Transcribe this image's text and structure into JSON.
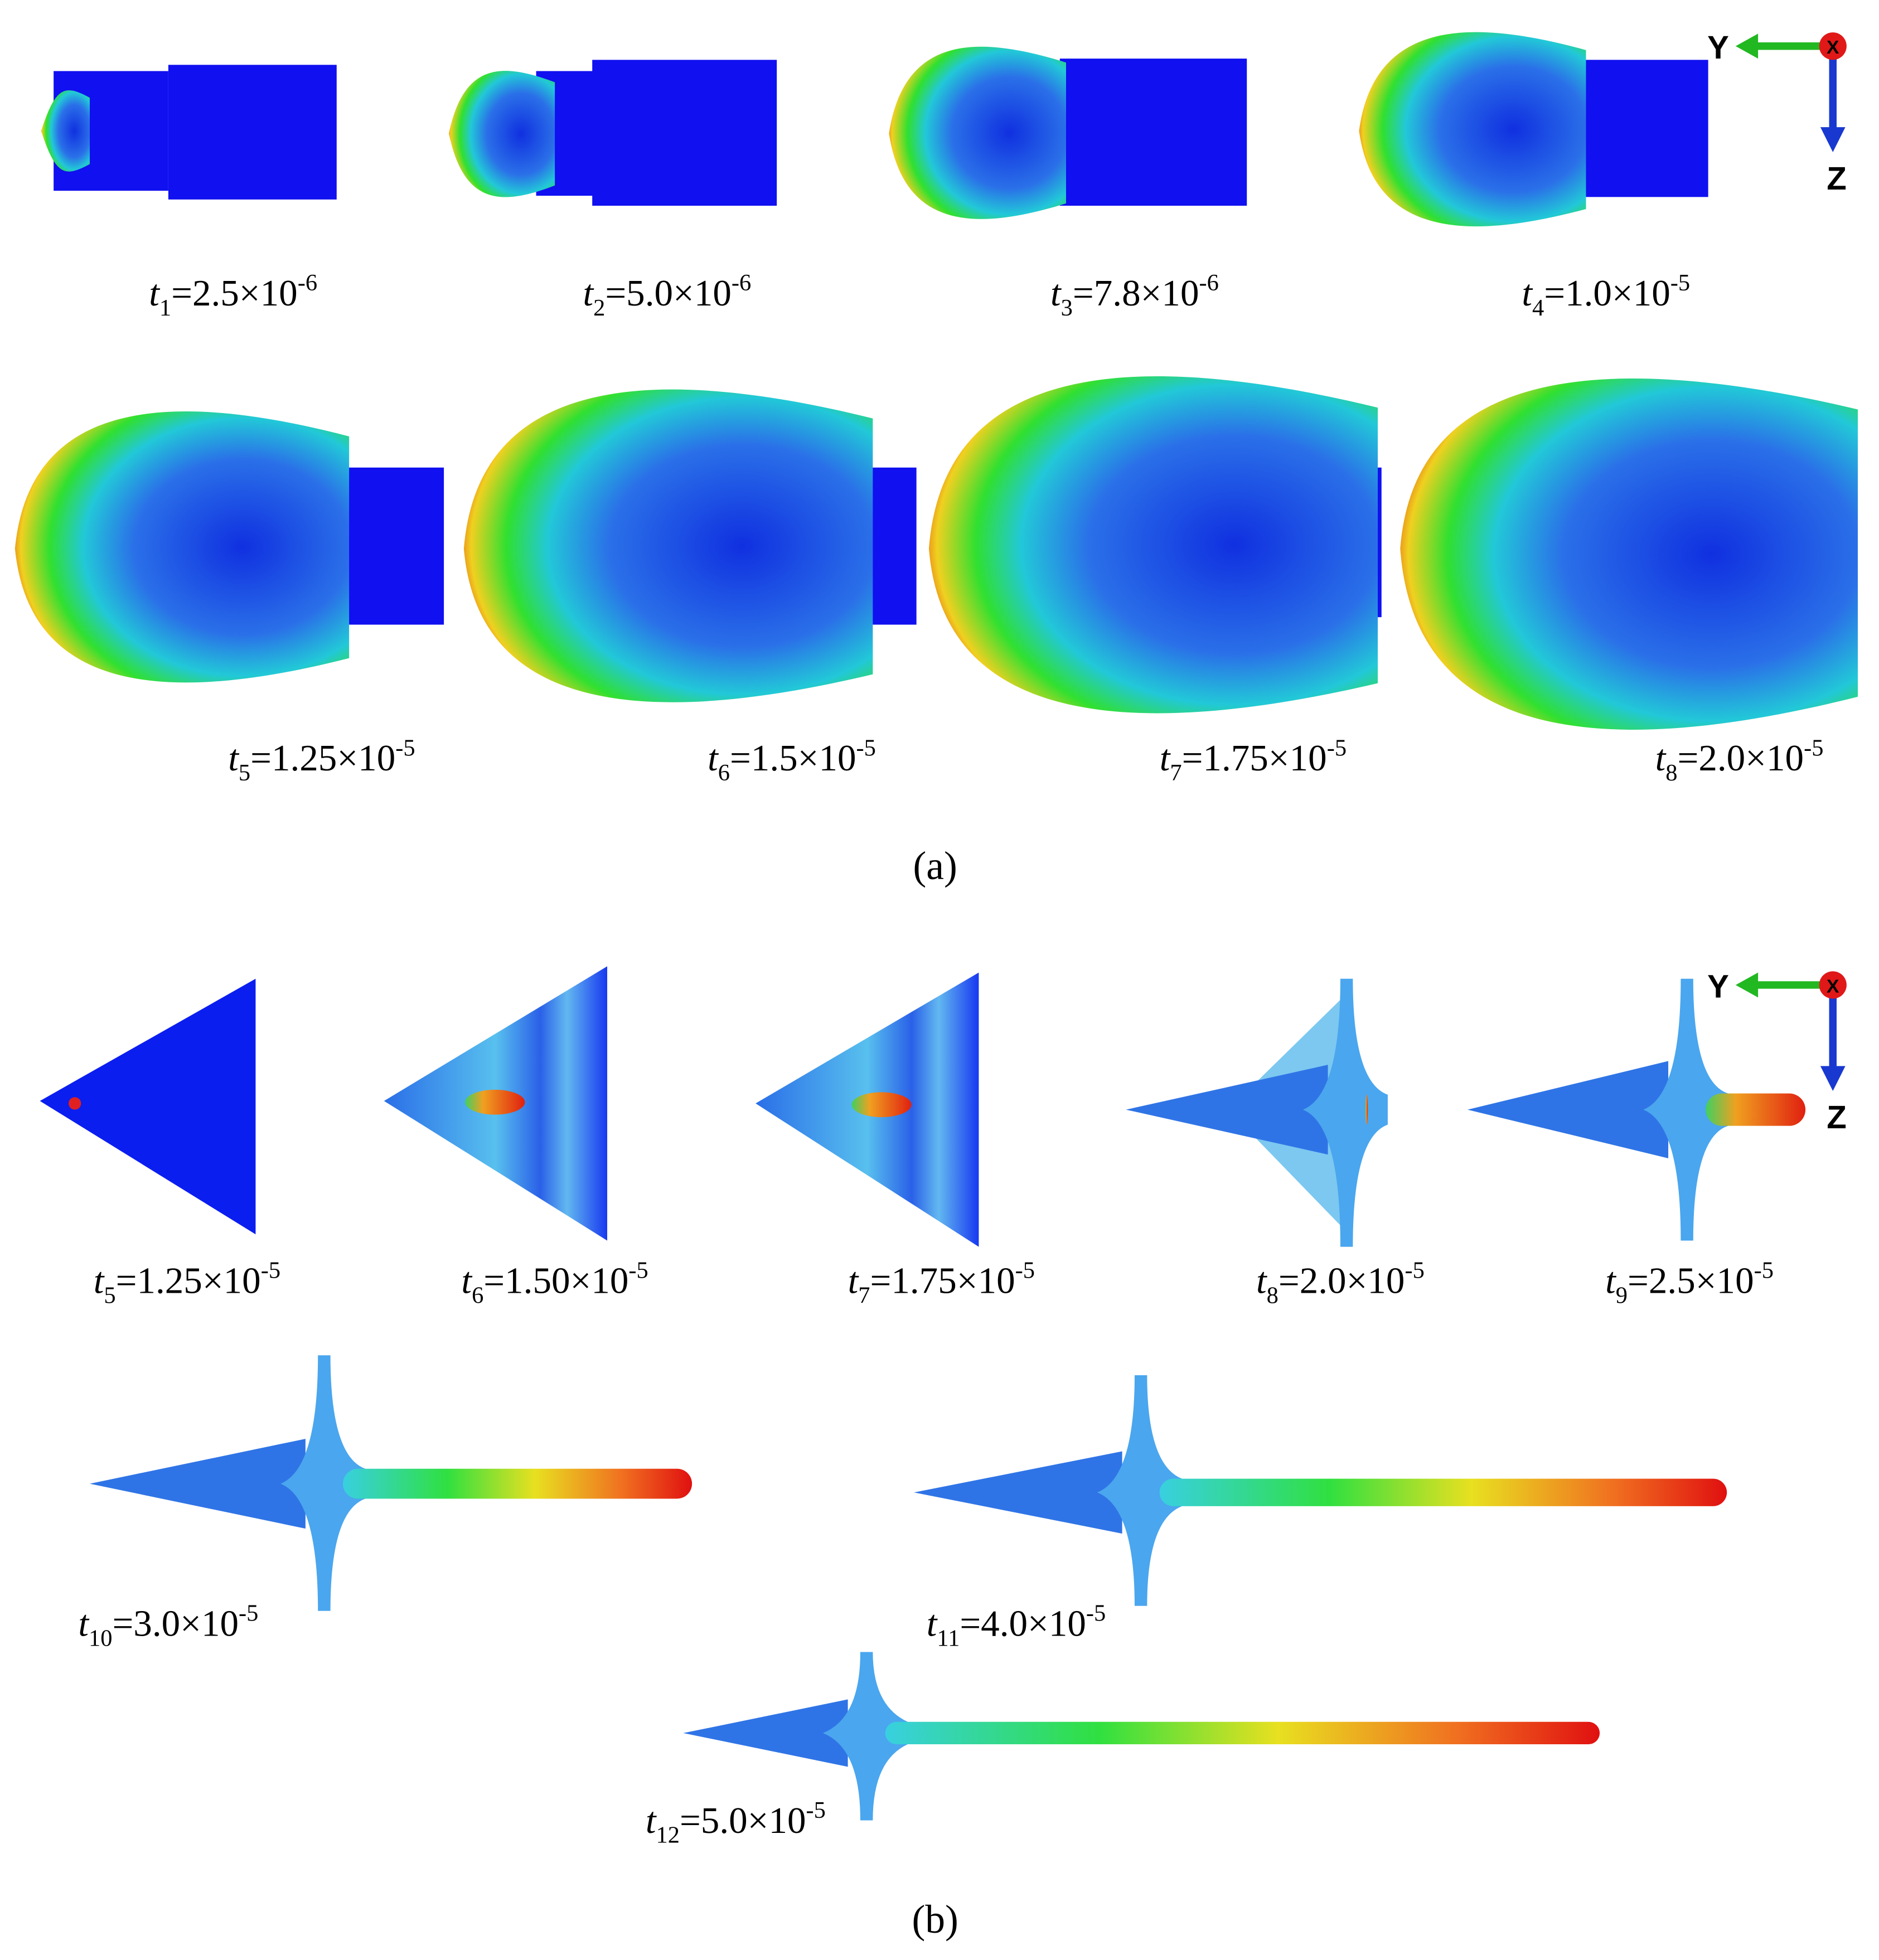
{
  "figure": {
    "panels": [
      {
        "label": "(a)",
        "axes": {
          "x": "X",
          "y": "Y",
          "z": "Z"
        },
        "frames": [
          {
            "symbol": "t",
            "subscript": "1",
            "value": "=2.5×10",
            "exponent": "-6"
          },
          {
            "symbol": "t",
            "subscript": "2",
            "value": "=5.0×10",
            "exponent": "-6"
          },
          {
            "symbol": "t",
            "subscript": "3",
            "value": "=7.8×10",
            "exponent": "-6"
          },
          {
            "symbol": "t",
            "subscript": "4",
            "value": "=1.0×10",
            "exponent": "-5"
          },
          {
            "symbol": "t",
            "subscript": "5",
            "value": "=1.25×10",
            "exponent": "-5"
          },
          {
            "symbol": "t",
            "subscript": "6",
            "value": "=1.5×10",
            "exponent": "-5"
          },
          {
            "symbol": "t",
            "subscript": "7",
            "value": "=1.75×10",
            "exponent": "-5"
          },
          {
            "symbol": "t",
            "subscript": "8",
            "value": "=2.0×10",
            "exponent": "-5"
          }
        ]
      },
      {
        "label": "(b)",
        "axes": {
          "x": "X",
          "y": "Y",
          "z": "Z"
        },
        "frames": [
          {
            "symbol": "t",
            "subscript": "5",
            "value": "=1.25×10",
            "exponent": "-5"
          },
          {
            "symbol": "t",
            "subscript": "6",
            "value": "=1.50×10",
            "exponent": "-5"
          },
          {
            "symbol": "t",
            "subscript": "7",
            "value": "=1.75×10",
            "exponent": "-5"
          },
          {
            "symbol": "t",
            "subscript": "8",
            "value": "=2.0×10",
            "exponent": "-5"
          },
          {
            "symbol": "t",
            "subscript": "9",
            "value": "=2.5×10",
            "exponent": "-5"
          },
          {
            "symbol": "t",
            "subscript": "10",
            "value": "=3.0×10",
            "exponent": "-5"
          },
          {
            "symbol": "t",
            "subscript": "11",
            "value": "=4.0×10",
            "exponent": "-5"
          },
          {
            "symbol": "t",
            "subscript": "12",
            "value": "=5.0×10",
            "exponent": "-5"
          }
        ]
      }
    ]
  }
}
